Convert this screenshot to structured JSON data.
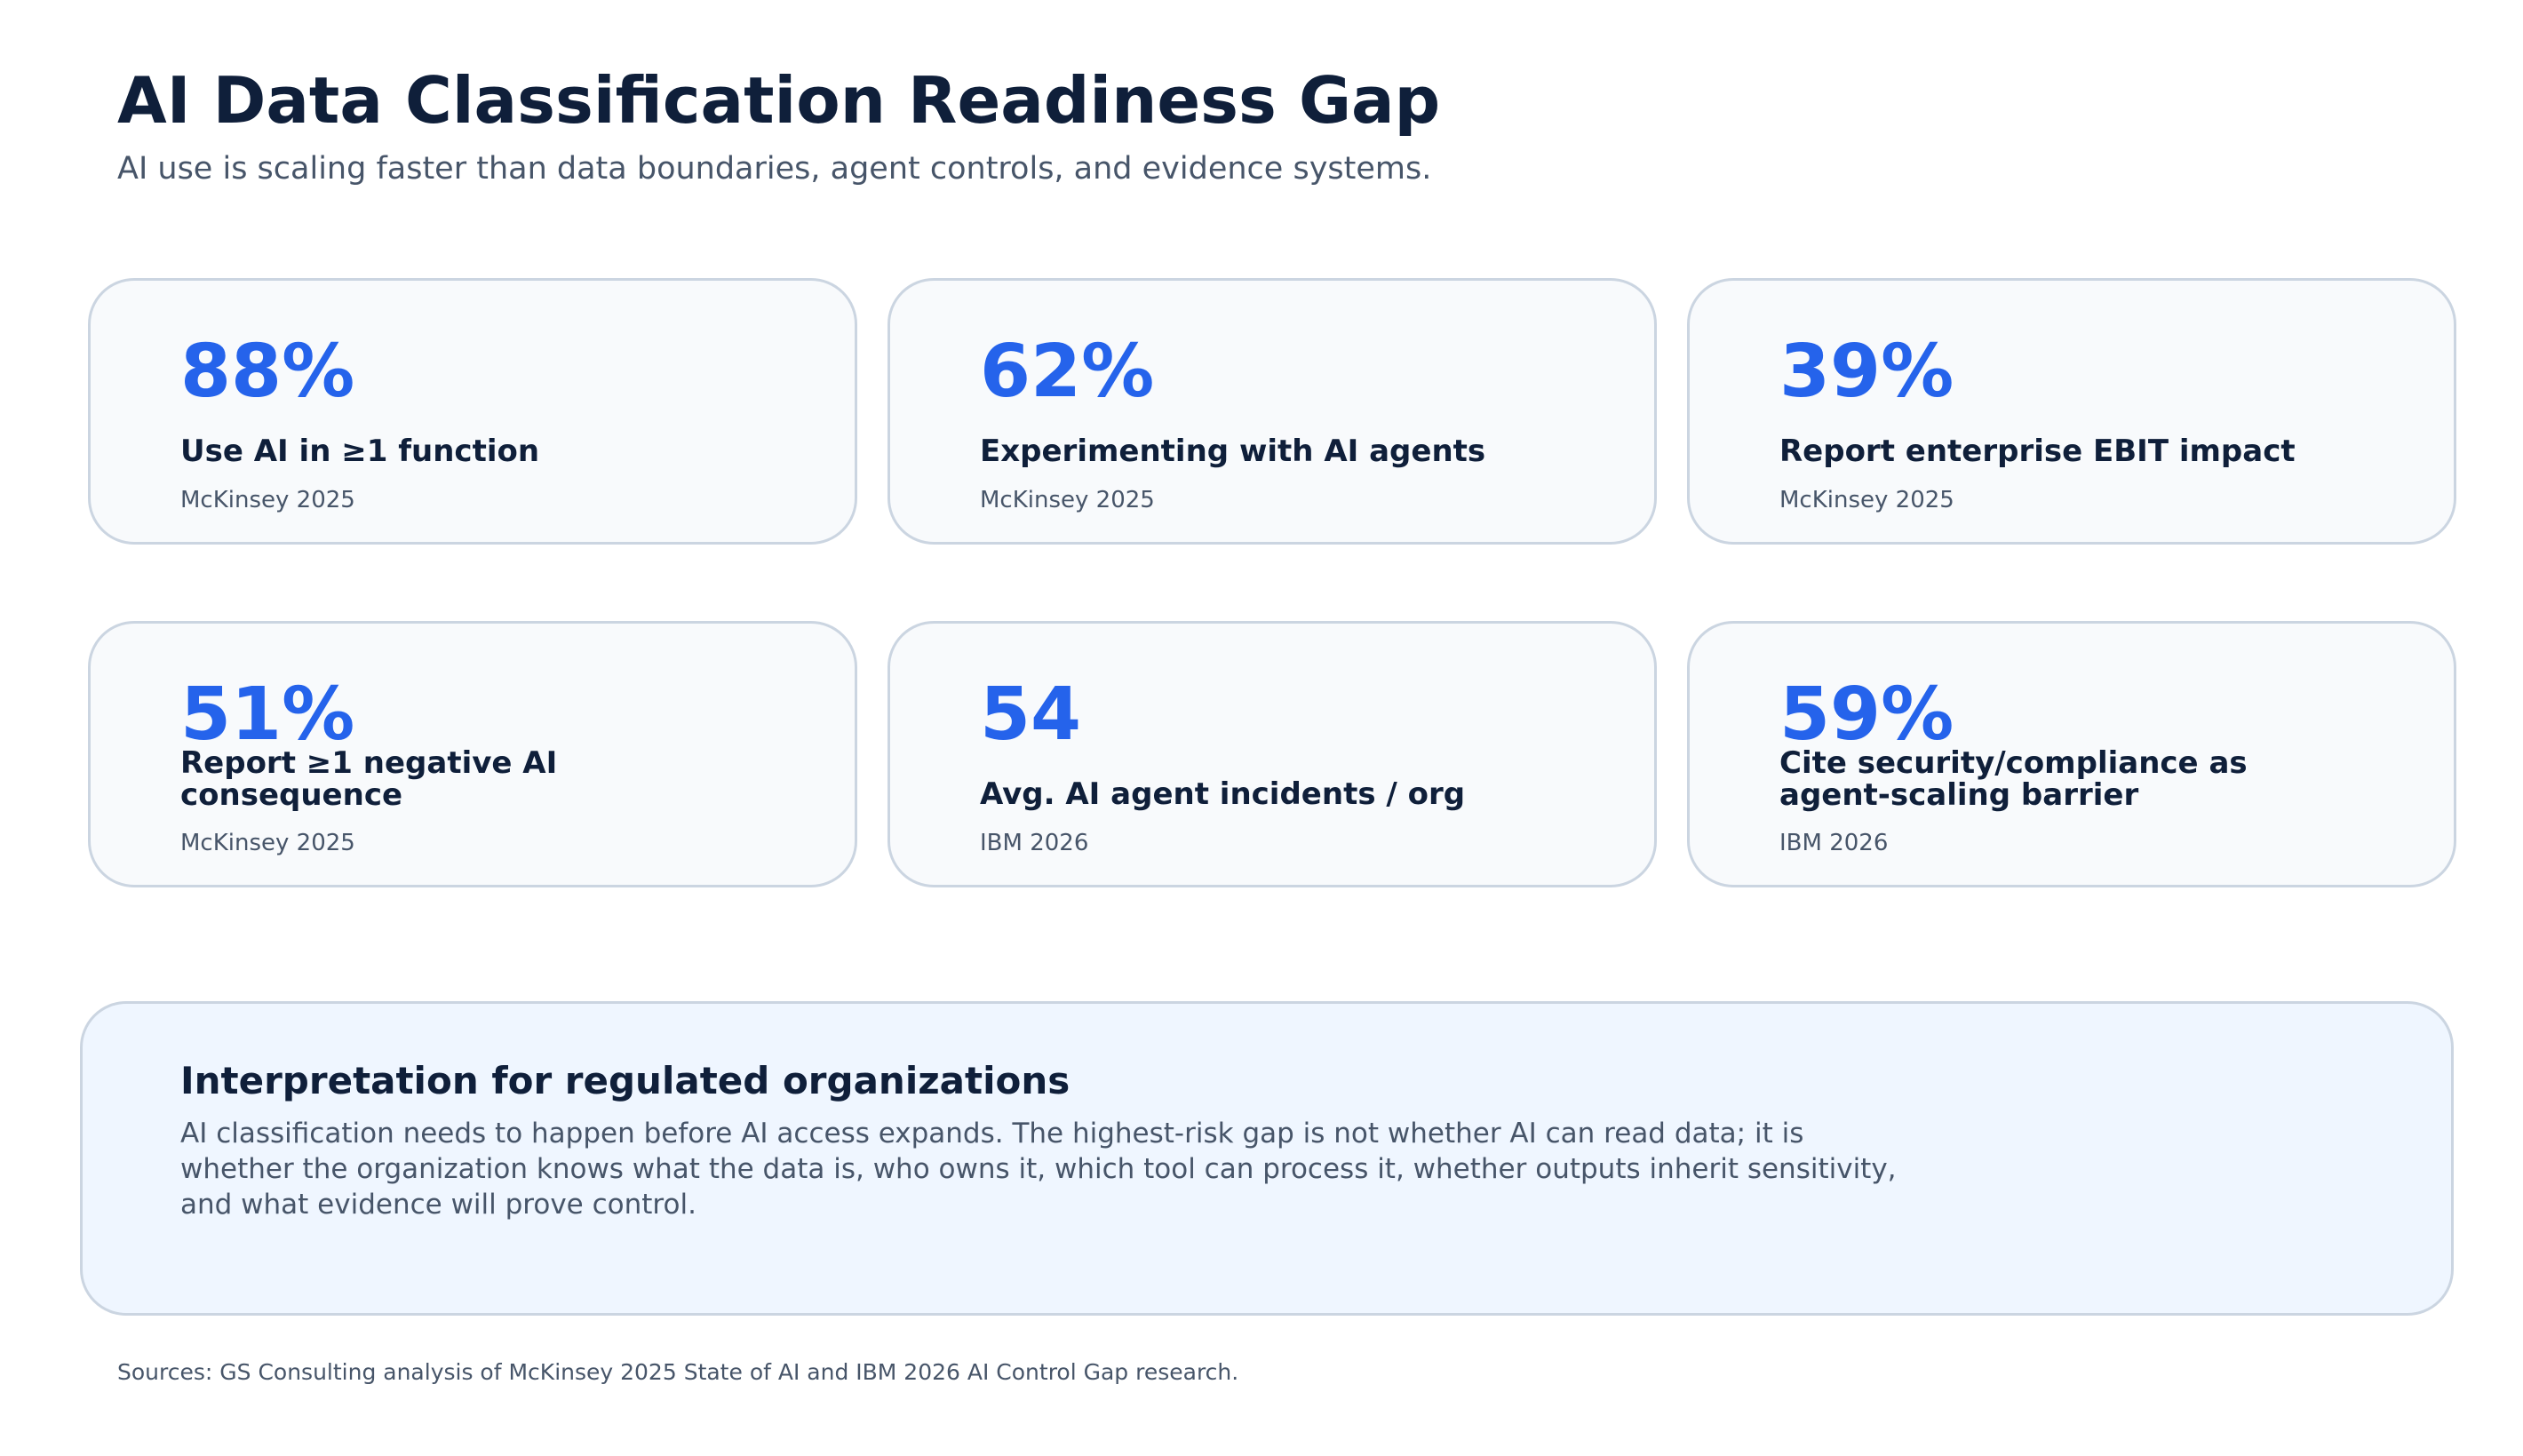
{
  "header": {
    "title": "AI Data Classification Readiness Gap",
    "subtitle": "AI use is scaling faster than data boundaries, agent controls, and evidence systems."
  },
  "chart_data": {
    "type": "table",
    "metrics": [
      {
        "value": "88%",
        "label": "Use AI in ≥1 function",
        "source": "McKinsey 2025"
      },
      {
        "value": "62%",
        "label": "Experimenting with AI agents",
        "source": "McKinsey 2025"
      },
      {
        "value": "39%",
        "label": "Report enterprise EBIT impact",
        "source": "McKinsey 2025"
      },
      {
        "value": "51%",
        "label": "Report ≥1 negative AI consequence",
        "source": "McKinsey 2025"
      },
      {
        "value": "54",
        "label": "Avg. AI agent incidents / org",
        "source": "IBM 2026"
      },
      {
        "value": "59%",
        "label": "Cite security/compliance as agent-scaling barrier",
        "source": "IBM 2026"
      }
    ]
  },
  "interpretation": {
    "heading": "Interpretation for regulated organizations",
    "body": "AI classification needs to happen before AI access expands. The highest-risk gap is not whether AI can read data; it is whether the organization knows what the data is, who owns it, which tool can process it, whether outputs inherit sensitivity, and what evidence will prove control."
  },
  "footer": {
    "sources": "Sources: GS Consulting analysis of McKinsey 2025 State of AI and IBM 2026 AI Control Gap research."
  },
  "colors": {
    "accent": "#2563eb",
    "title": "#0f1f3a",
    "muted": "#475569",
    "card_bg": "#f8fafc",
    "card_border": "#cbd5e1",
    "panel_bg": "#eff6ff"
  }
}
